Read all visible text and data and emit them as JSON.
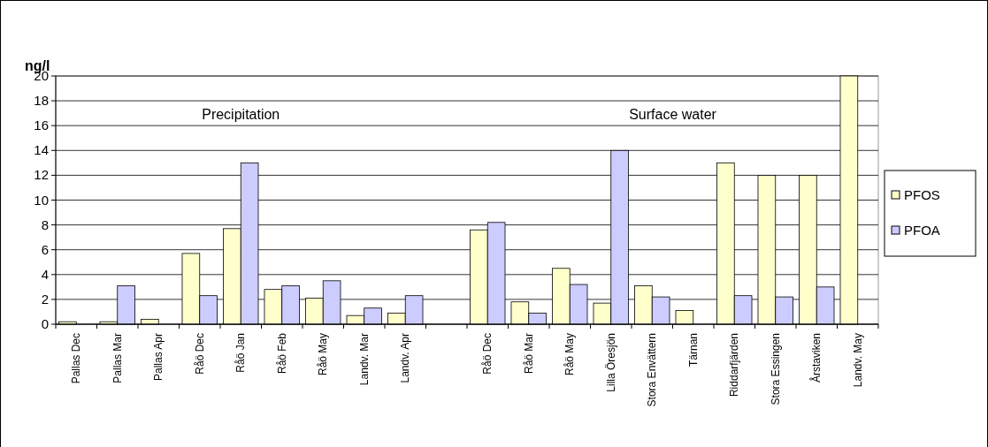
{
  "chart_data": {
    "type": "bar",
    "ylabel": "ng/l",
    "categories": [
      "Pallas Dec",
      "Pallas Mar",
      "Pallas Apr",
      "Råö Dec",
      "Råö Jan",
      "Råö Feb",
      "Råö May",
      "Landv. Mar",
      "Landv. Apr",
      null,
      "Råö Dec",
      "Råö Mar",
      "Råö May",
      "Lilla Öresjön",
      "Stora Envättern",
      "Tärnan",
      "Riddarfjärden",
      "Stora Essingen",
      "Årstaviken",
      "Landv. May"
    ],
    "series": [
      {
        "name": "PFOS",
        "color": "#ffffcc",
        "values": [
          0.2,
          0.2,
          0.4,
          5.7,
          7.7,
          2.8,
          2.1,
          0.7,
          0.9,
          null,
          7.6,
          1.8,
          4.5,
          1.7,
          3.1,
          1.1,
          13,
          12,
          12,
          20
        ]
      },
      {
        "name": "PFOA",
        "color": "#ccccff",
        "values": [
          null,
          3.1,
          null,
          2.3,
          13,
          3.1,
          3.5,
          1.3,
          2.3,
          null,
          8.2,
          0.9,
          3.2,
          14,
          2.2,
          null,
          2.3,
          2.2,
          3.0,
          null
        ]
      }
    ],
    "annotations": [
      "Precipitation",
      "Surface water"
    ],
    "ylim": [
      0,
      20
    ],
    "yticks": [
      0,
      2,
      4,
      6,
      8,
      10,
      12,
      14,
      16,
      18,
      20
    ],
    "grid": "y",
    "legend": "right"
  }
}
